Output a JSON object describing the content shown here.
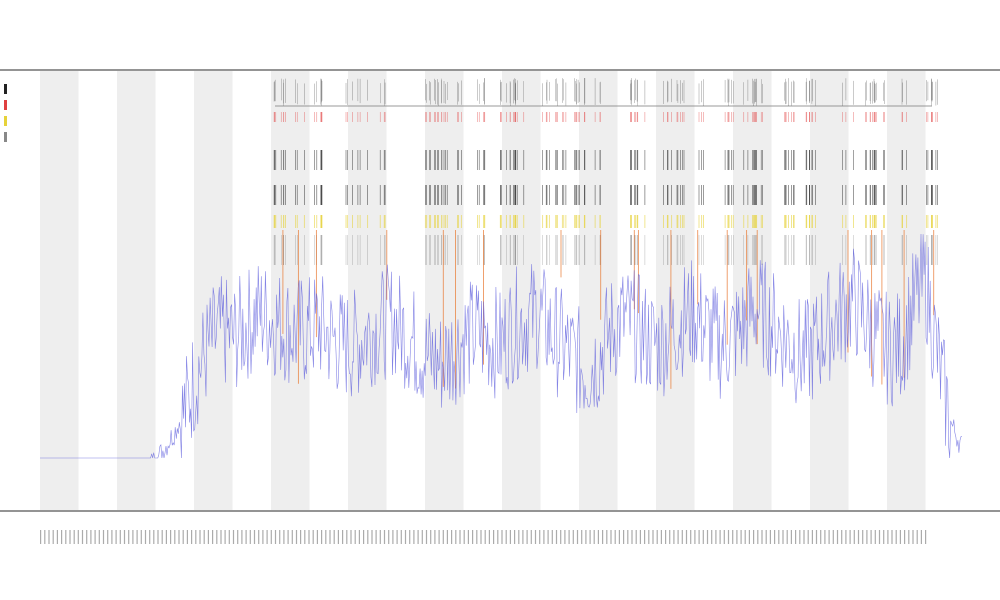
{
  "chart_data": {
    "type": "line",
    "title": "",
    "xlabel": "",
    "ylabel": "",
    "colors": {
      "line": "#5b5bdc",
      "band": "#eeeeee",
      "orange": "#e8742a",
      "yellow": "#e6d23a",
      "black": "#222222",
      "red": "#e04040"
    },
    "band_count": 12,
    "tick_count": 212,
    "series": [
      {
        "values": [
          2,
          2,
          2,
          2,
          1,
          1,
          1,
          2,
          2,
          3,
          5,
          8,
          12,
          18,
          22,
          24,
          23,
          25,
          27,
          26,
          25,
          24,
          24,
          25,
          23,
          22,
          22,
          24,
          25,
          26,
          24,
          22,
          20,
          19,
          21,
          23,
          24,
          23,
          22,
          25,
          26,
          27,
          24,
          22,
          20,
          18,
          20,
          24,
          26,
          25,
          23,
          22,
          24,
          26,
          27,
          24,
          22,
          23,
          25,
          28,
          26,
          24,
          22,
          20,
          22,
          25,
          27,
          29,
          26,
          23,
          21,
          22,
          28,
          32,
          20,
          10,
          6
        ]
      }
    ]
  },
  "legend": {
    "items": [
      {
        "label": "",
        "color": "#222222"
      },
      {
        "label": "",
        "color": "#e04040"
      },
      {
        "label": "",
        "color": "#e6d23a"
      },
      {
        "label": "",
        "color": "#888888"
      }
    ]
  },
  "rows": {
    "labels": [
      "",
      ""
    ]
  },
  "texts": {
    "title_lines": [
      "",
      "",
      ""
    ],
    "xlabel": ""
  }
}
